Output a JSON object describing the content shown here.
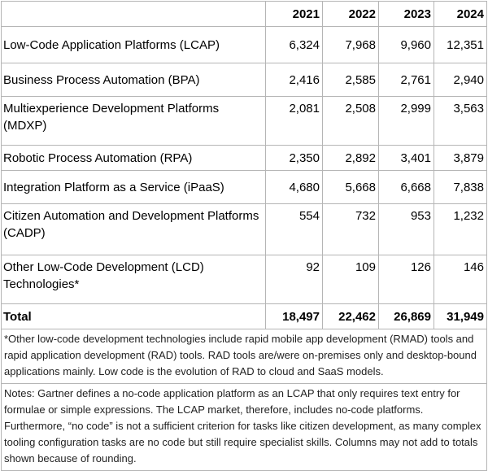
{
  "table": {
    "headers": [
      "",
      "2021",
      "2022",
      "2023",
      "2024"
    ],
    "rows": [
      {
        "label": "Low-Code Application Platforms (LCAP)",
        "values": [
          "6,324",
          "7,968",
          "9,960",
          "12,351"
        ]
      },
      {
        "label": "Business Process Automation (BPA)",
        "values": [
          "2,416",
          "2,585",
          "2,761",
          "2,940"
        ]
      },
      {
        "label": "Multiexperience Development Platforms (MDXP)",
        "values": [
          "2,081",
          "2,508",
          "2,999",
          "3,563"
        ]
      },
      {
        "label": "Robotic Process Automation (RPA)",
        "values": [
          "2,350",
          "2,892",
          "3,401",
          "3,879"
        ]
      },
      {
        "label": "Integration Platform as a Service (iPaaS)",
        "values": [
          "4,680",
          "5,668",
          "6,668",
          "7,838"
        ]
      },
      {
        "label": "Citizen Automation and Development Platforms (CADP)",
        "values": [
          "554",
          "732",
          "953",
          "1,232"
        ]
      },
      {
        "label": "Other Low-Code Development (LCD) Technologies*",
        "values": [
          "92",
          "109",
          "126",
          "146"
        ]
      }
    ],
    "total": {
      "label": "Total",
      "values": [
        "18,497",
        "22,462",
        "26,869",
        "31,949"
      ]
    }
  },
  "footnotes": {
    "asterisk": "*Other low-code development technologies include rapid mobile app development (RMAD) tools and rapid application development (RAD) tools. RAD tools are/were on-premises only and desktop-bound applications mainly. Low code is the evolution of RAD to cloud and SaaS models.",
    "notes": "Notes: Gartner defines a no-code application platform as an LCAP that only requires text entry for formulae or simple expressions. The LCAP market, therefore, includes no-code platforms. Furthermore, “no code” is not a sufficient criterion for tasks like citizen development, as many complex tooling configuration tasks are no code but still require specialist skills. Columns may not add to totals shown because of rounding."
  }
}
